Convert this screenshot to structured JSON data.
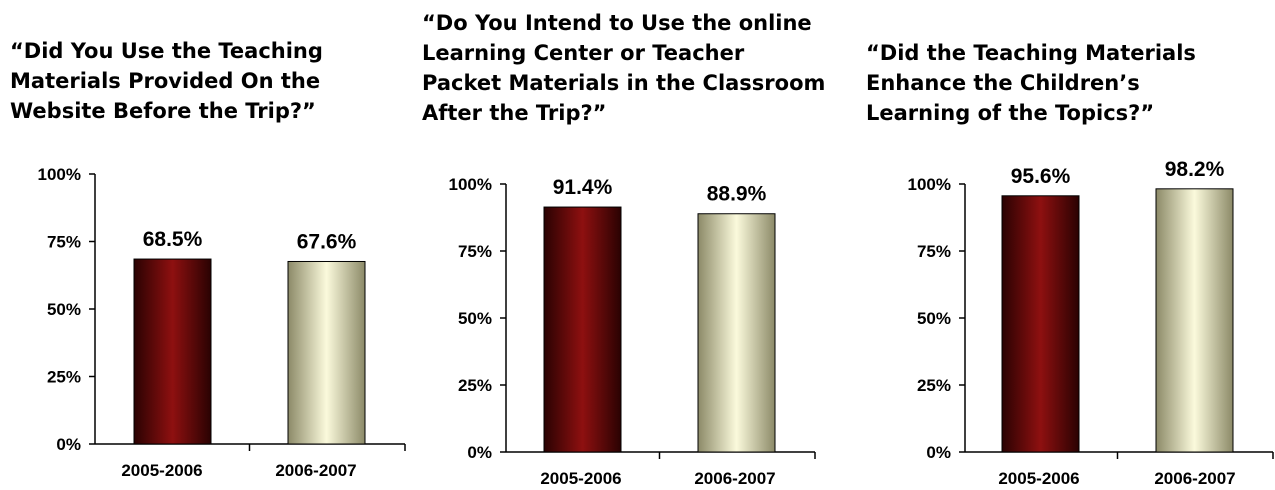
{
  "chart_data": [
    {
      "type": "bar",
      "title": "“Did You Use the Teaching\nMaterials Provided On the\nWebsite Before the Trip?”",
      "categories": [
        "2005-2006",
        "2006-2007"
      ],
      "values": [
        68.5,
        67.6
      ],
      "value_labels": [
        "68.5%",
        "67.6%"
      ],
      "yticks": [
        "0%",
        "25%",
        "50%",
        "75%",
        "100%"
      ],
      "ylim": [
        0,
        100
      ],
      "grid": false,
      "legend": "none"
    },
    {
      "type": "bar",
      "title": "“Do You Intend to Use the online\nLearning Center or Teacher\nPacket Materials in the Classroom\nAfter the Trip?”",
      "categories": [
        "2005-2006",
        "2006-2007"
      ],
      "values": [
        91.4,
        88.9
      ],
      "value_labels": [
        "91.4%",
        "88.9%"
      ],
      "yticks": [
        "0%",
        "25%",
        "50%",
        "75%",
        "100%"
      ],
      "ylim": [
        0,
        100
      ],
      "grid": false,
      "legend": "none"
    },
    {
      "type": "bar",
      "title": "“Did the Teaching Materials\nEnhance the Children’s\nLearning of the Topics?”",
      "categories": [
        "2005-2006",
        "2006-2007"
      ],
      "values": [
        95.6,
        98.2
      ],
      "value_labels": [
        "95.6%",
        "98.2%"
      ],
      "yticks": [
        "0%",
        "25%",
        "50%",
        "75%",
        "100%"
      ],
      "ylim": [
        0,
        100
      ],
      "grid": false,
      "legend": "none"
    }
  ],
  "colors": {
    "series_2005_2006": "#7a0a0a",
    "series_2006_2007": "#f2f0c4"
  }
}
